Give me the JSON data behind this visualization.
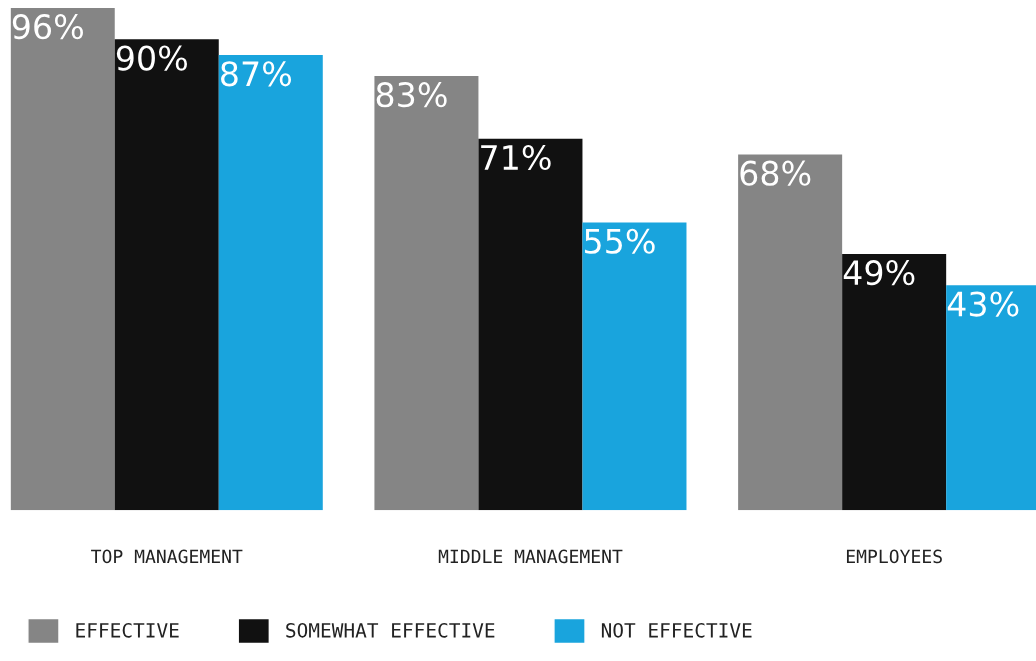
{
  "chart_data": {
    "type": "bar",
    "categories": [
      "TOP MANAGEMENT",
      "MIDDLE MANAGEMENT",
      "EMPLOYEES"
    ],
    "series": [
      {
        "name": "EFFECTIVE",
        "color": "#858585",
        "values": [
          96,
          83,
          68
        ],
        "value_labels": [
          "96%",
          "83%",
          "68%"
        ]
      },
      {
        "name": "SOMEWHAT EFFECTIVE",
        "color": "#111111",
        "values": [
          90,
          71,
          49
        ],
        "value_labels": [
          "90%",
          "71%",
          "49%"
        ]
      },
      {
        "name": "NOT EFFECTIVE",
        "color": "#19a4dd",
        "values": [
          87,
          55,
          43
        ],
        "value_labels": [
          "87%",
          "55%",
          "43%"
        ]
      }
    ],
    "legend": "bottom",
    "grid": false
  }
}
